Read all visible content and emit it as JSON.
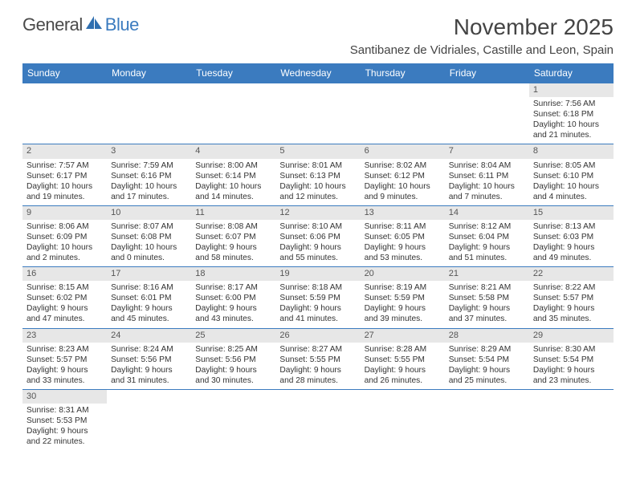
{
  "logo": {
    "text1": "General",
    "text2": "Blue",
    "glyph_color": "#2f6fb0"
  },
  "title": "November 2025",
  "location": "Santibanez de Vidriales, Castille and Leon, Spain",
  "header_bg": "#3b7bbf",
  "daynum_bg": "#e7e7e7",
  "border_color": "#3b7bbf",
  "day_headers": [
    "Sunday",
    "Monday",
    "Tuesday",
    "Wednesday",
    "Thursday",
    "Friday",
    "Saturday"
  ],
  "weeks": [
    [
      {
        "n": "",
        "sunrise": "",
        "sunset": "",
        "daylight": ""
      },
      {
        "n": "",
        "sunrise": "",
        "sunset": "",
        "daylight": ""
      },
      {
        "n": "",
        "sunrise": "",
        "sunset": "",
        "daylight": ""
      },
      {
        "n": "",
        "sunrise": "",
        "sunset": "",
        "daylight": ""
      },
      {
        "n": "",
        "sunrise": "",
        "sunset": "",
        "daylight": ""
      },
      {
        "n": "",
        "sunrise": "",
        "sunset": "",
        "daylight": ""
      },
      {
        "n": "1",
        "sunrise": "Sunrise: 7:56 AM",
        "sunset": "Sunset: 6:18 PM",
        "daylight": "Daylight: 10 hours and 21 minutes."
      }
    ],
    [
      {
        "n": "2",
        "sunrise": "Sunrise: 7:57 AM",
        "sunset": "Sunset: 6:17 PM",
        "daylight": "Daylight: 10 hours and 19 minutes."
      },
      {
        "n": "3",
        "sunrise": "Sunrise: 7:59 AM",
        "sunset": "Sunset: 6:16 PM",
        "daylight": "Daylight: 10 hours and 17 minutes."
      },
      {
        "n": "4",
        "sunrise": "Sunrise: 8:00 AM",
        "sunset": "Sunset: 6:14 PM",
        "daylight": "Daylight: 10 hours and 14 minutes."
      },
      {
        "n": "5",
        "sunrise": "Sunrise: 8:01 AM",
        "sunset": "Sunset: 6:13 PM",
        "daylight": "Daylight: 10 hours and 12 minutes."
      },
      {
        "n": "6",
        "sunrise": "Sunrise: 8:02 AM",
        "sunset": "Sunset: 6:12 PM",
        "daylight": "Daylight: 10 hours and 9 minutes."
      },
      {
        "n": "7",
        "sunrise": "Sunrise: 8:04 AM",
        "sunset": "Sunset: 6:11 PM",
        "daylight": "Daylight: 10 hours and 7 minutes."
      },
      {
        "n": "8",
        "sunrise": "Sunrise: 8:05 AM",
        "sunset": "Sunset: 6:10 PM",
        "daylight": "Daylight: 10 hours and 4 minutes."
      }
    ],
    [
      {
        "n": "9",
        "sunrise": "Sunrise: 8:06 AM",
        "sunset": "Sunset: 6:09 PM",
        "daylight": "Daylight: 10 hours and 2 minutes."
      },
      {
        "n": "10",
        "sunrise": "Sunrise: 8:07 AM",
        "sunset": "Sunset: 6:08 PM",
        "daylight": "Daylight: 10 hours and 0 minutes."
      },
      {
        "n": "11",
        "sunrise": "Sunrise: 8:08 AM",
        "sunset": "Sunset: 6:07 PM",
        "daylight": "Daylight: 9 hours and 58 minutes."
      },
      {
        "n": "12",
        "sunrise": "Sunrise: 8:10 AM",
        "sunset": "Sunset: 6:06 PM",
        "daylight": "Daylight: 9 hours and 55 minutes."
      },
      {
        "n": "13",
        "sunrise": "Sunrise: 8:11 AM",
        "sunset": "Sunset: 6:05 PM",
        "daylight": "Daylight: 9 hours and 53 minutes."
      },
      {
        "n": "14",
        "sunrise": "Sunrise: 8:12 AM",
        "sunset": "Sunset: 6:04 PM",
        "daylight": "Daylight: 9 hours and 51 minutes."
      },
      {
        "n": "15",
        "sunrise": "Sunrise: 8:13 AM",
        "sunset": "Sunset: 6:03 PM",
        "daylight": "Daylight: 9 hours and 49 minutes."
      }
    ],
    [
      {
        "n": "16",
        "sunrise": "Sunrise: 8:15 AM",
        "sunset": "Sunset: 6:02 PM",
        "daylight": "Daylight: 9 hours and 47 minutes."
      },
      {
        "n": "17",
        "sunrise": "Sunrise: 8:16 AM",
        "sunset": "Sunset: 6:01 PM",
        "daylight": "Daylight: 9 hours and 45 minutes."
      },
      {
        "n": "18",
        "sunrise": "Sunrise: 8:17 AM",
        "sunset": "Sunset: 6:00 PM",
        "daylight": "Daylight: 9 hours and 43 minutes."
      },
      {
        "n": "19",
        "sunrise": "Sunrise: 8:18 AM",
        "sunset": "Sunset: 5:59 PM",
        "daylight": "Daylight: 9 hours and 41 minutes."
      },
      {
        "n": "20",
        "sunrise": "Sunrise: 8:19 AM",
        "sunset": "Sunset: 5:59 PM",
        "daylight": "Daylight: 9 hours and 39 minutes."
      },
      {
        "n": "21",
        "sunrise": "Sunrise: 8:21 AM",
        "sunset": "Sunset: 5:58 PM",
        "daylight": "Daylight: 9 hours and 37 minutes."
      },
      {
        "n": "22",
        "sunrise": "Sunrise: 8:22 AM",
        "sunset": "Sunset: 5:57 PM",
        "daylight": "Daylight: 9 hours and 35 minutes."
      }
    ],
    [
      {
        "n": "23",
        "sunrise": "Sunrise: 8:23 AM",
        "sunset": "Sunset: 5:57 PM",
        "daylight": "Daylight: 9 hours and 33 minutes."
      },
      {
        "n": "24",
        "sunrise": "Sunrise: 8:24 AM",
        "sunset": "Sunset: 5:56 PM",
        "daylight": "Daylight: 9 hours and 31 minutes."
      },
      {
        "n": "25",
        "sunrise": "Sunrise: 8:25 AM",
        "sunset": "Sunset: 5:56 PM",
        "daylight": "Daylight: 9 hours and 30 minutes."
      },
      {
        "n": "26",
        "sunrise": "Sunrise: 8:27 AM",
        "sunset": "Sunset: 5:55 PM",
        "daylight": "Daylight: 9 hours and 28 minutes."
      },
      {
        "n": "27",
        "sunrise": "Sunrise: 8:28 AM",
        "sunset": "Sunset: 5:55 PM",
        "daylight": "Daylight: 9 hours and 26 minutes."
      },
      {
        "n": "28",
        "sunrise": "Sunrise: 8:29 AM",
        "sunset": "Sunset: 5:54 PM",
        "daylight": "Daylight: 9 hours and 25 minutes."
      },
      {
        "n": "29",
        "sunrise": "Sunrise: 8:30 AM",
        "sunset": "Sunset: 5:54 PM",
        "daylight": "Daylight: 9 hours and 23 minutes."
      }
    ],
    [
      {
        "n": "30",
        "sunrise": "Sunrise: 8:31 AM",
        "sunset": "Sunset: 5:53 PM",
        "daylight": "Daylight: 9 hours and 22 minutes."
      },
      {
        "n": "",
        "sunrise": "",
        "sunset": "",
        "daylight": ""
      },
      {
        "n": "",
        "sunrise": "",
        "sunset": "",
        "daylight": ""
      },
      {
        "n": "",
        "sunrise": "",
        "sunset": "",
        "daylight": ""
      },
      {
        "n": "",
        "sunrise": "",
        "sunset": "",
        "daylight": ""
      },
      {
        "n": "",
        "sunrise": "",
        "sunset": "",
        "daylight": ""
      },
      {
        "n": "",
        "sunrise": "",
        "sunset": "",
        "daylight": ""
      }
    ]
  ]
}
